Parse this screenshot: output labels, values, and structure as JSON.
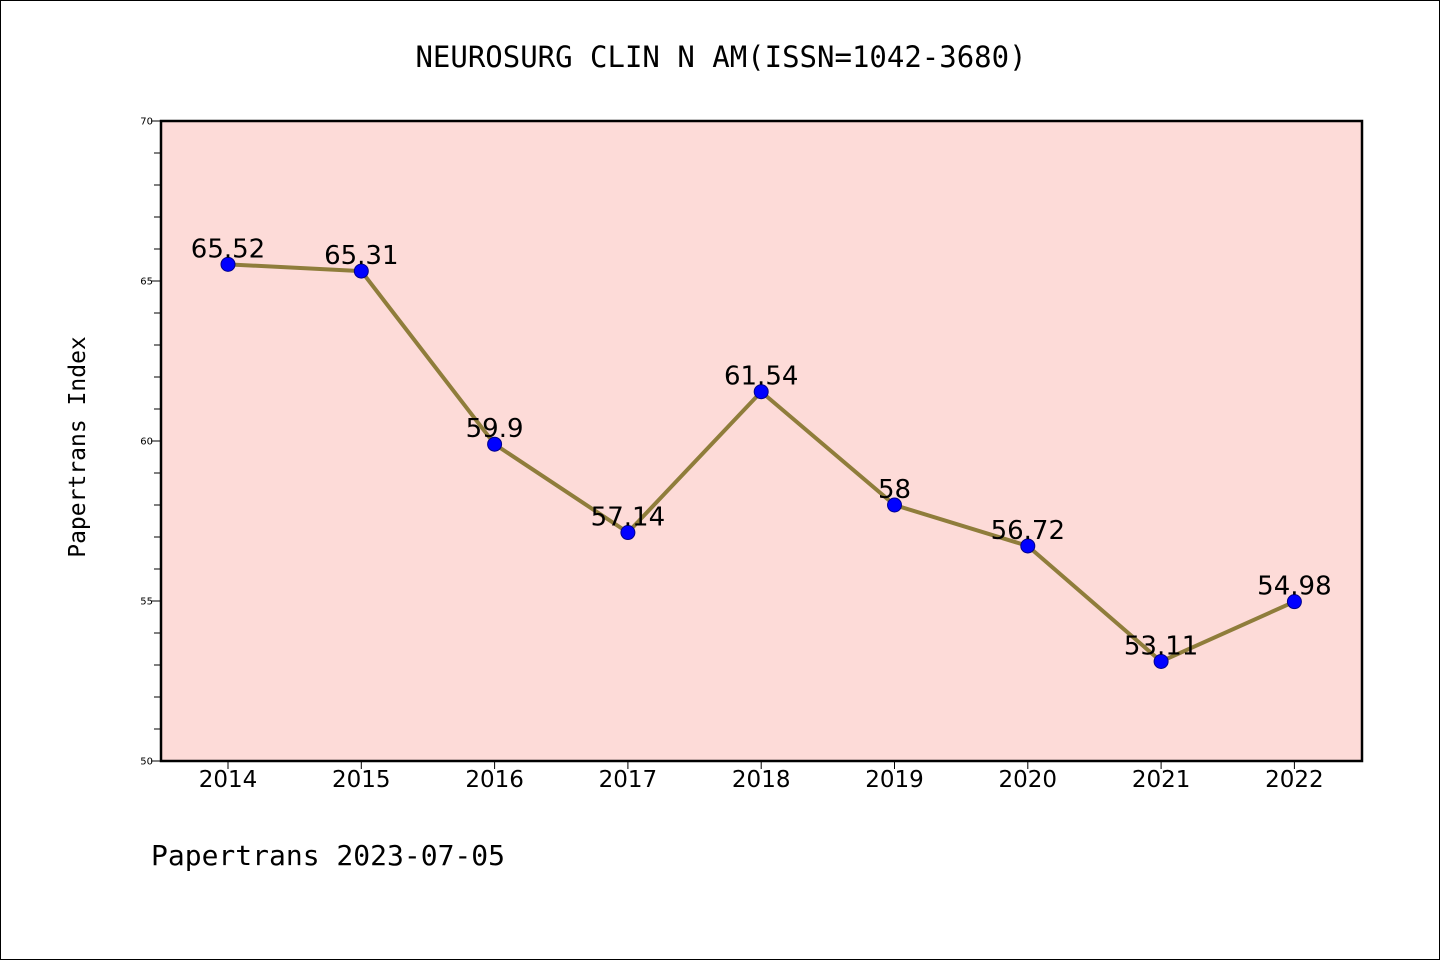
{
  "colors": {
    "plot_background": "#fddbd8",
    "line": "#8f7d3b",
    "marker": "#0000ff",
    "marker_edge": "#00008b",
    "axis": "#000000"
  },
  "footer": "Papertrans 2023-07-05",
  "chart_data": {
    "type": "line",
    "title": "NEUROSURG CLIN N AM(ISSN=1042-3680)",
    "xlabel": "",
    "ylabel": "Papertrans Index",
    "categories": [
      "2014",
      "2015",
      "2016",
      "2017",
      "2018",
      "2019",
      "2020",
      "2021",
      "2022"
    ],
    "series": [
      {
        "values": [
          65.52,
          65.31,
          59.9,
          57.14,
          61.54,
          58,
          56.72,
          53.11,
          54.98
        ],
        "labels": [
          "65.52",
          "65.31",
          "59.9",
          "57.14",
          "61.54",
          "58",
          "56.72",
          "53.11",
          "54.98"
        ]
      }
    ],
    "ylim": [
      50,
      70
    ],
    "yticks": [
      50,
      55,
      60,
      65,
      70
    ],
    "ytick_labels": [
      "50",
      "55",
      "60",
      "65",
      "70"
    ],
    "yminor_step": 1,
    "grid": false,
    "legend": "none"
  }
}
